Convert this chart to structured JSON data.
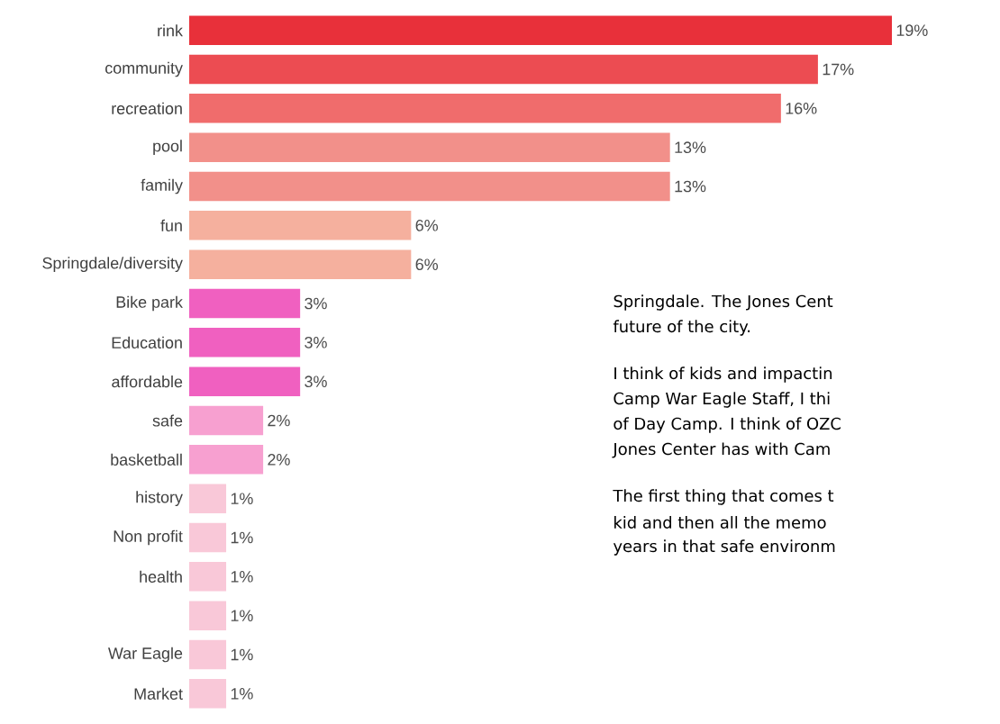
{
  "chart_data": {
    "type": "bar",
    "orientation": "horizontal",
    "categories": [
      "rink",
      "community",
      "recreation",
      "pool",
      "family",
      "fun",
      "Springdale/diversity",
      "Bike park",
      "Education",
      "affordable",
      "safe",
      "basketball",
      "history",
      "Non profit",
      "health",
      null,
      "War Eagle",
      "Market"
    ],
    "values": [
      19,
      17,
      16,
      13,
      13,
      6,
      6,
      3,
      3,
      3,
      2,
      2,
      1,
      1,
      1,
      1,
      1,
      1
    ],
    "value_labels": [
      "19%",
      "17%",
      "16%",
      "13%",
      "13%",
      "6%",
      "6%",
      "3%",
      "3%",
      "3%",
      "2%",
      "2%",
      "1%",
      "1%",
      "1%",
      "1%",
      "1%",
      "1%"
    ],
    "colors": [
      "#e8303a",
      "#ec4c52",
      "#f06c6c",
      "#f2908a",
      "#f2908a",
      "#f5b09e",
      "#f5b09e",
      "#f060c0",
      "#f060c0",
      "#f060c0",
      "#f7a0d0",
      "#f7a0d0",
      "#f9c8d8",
      "#f9c8d8",
      "#f9c8d8",
      "#f9c8d8",
      "#f9c8d8",
      "#f9c8d8"
    ],
    "annotations": [
      "Springdale. The Jones Cent",
      "future of the city.",
      "I think of kids and impactin",
      "Camp War Eagle Staff, I thi",
      "of Day Camp. I think of OZC",
      "Jones Center has with Cam",
      "The first thing that comes t",
      "kid and then all the memo",
      "years in that safe environm"
    ]
  }
}
